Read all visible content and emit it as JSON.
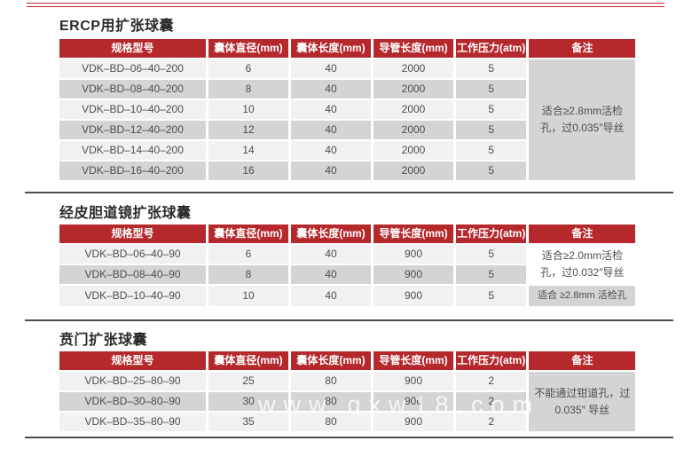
{
  "page": {
    "watermark": "www.qxw18.com"
  },
  "colors": {
    "header_red": "#b5292d",
    "top_rule_red": "#cc2129",
    "row_light": "#f1f1f1",
    "row_dark": "#d4d4d4",
    "divider_gray": "#4d4d4d"
  },
  "columns": [
    "规格型号",
    "囊体直径(mm)",
    "囊体长度(mm)",
    "导管长度(mm)",
    "工作压力(atm)",
    "备注"
  ],
  "sections": [
    {
      "title": "ERCP用扩张球囊",
      "rows": [
        [
          "VDK–BD–06–40–200",
          "6",
          "40",
          "2000",
          "5"
        ],
        [
          "VDK–BD–08–40–200",
          "8",
          "40",
          "2000",
          "5"
        ],
        [
          "VDK–BD–10–40–200",
          "10",
          "40",
          "2000",
          "5"
        ],
        [
          "VDK–BD–12–40–200",
          "12",
          "40",
          "2000",
          "5"
        ],
        [
          "VDK–BD–14–40–200",
          "14",
          "40",
          "2000",
          "5"
        ],
        [
          "VDK–BD–16–40–200",
          "16",
          "40",
          "2000",
          "5"
        ]
      ],
      "remarks": [
        {
          "start": 0,
          "span": 6,
          "shaded": true,
          "small": false,
          "text": "适合≥2.8mm活检孔，过0.035″导丝"
        }
      ]
    },
    {
      "title": "经皮胆道镜扩张球囊",
      "rows": [
        [
          "VDK–BD–06–40–90",
          "6",
          "40",
          "900",
          "5"
        ],
        [
          "VDK–BD–08–40–90",
          "8",
          "40",
          "900",
          "5"
        ],
        [
          "VDK–BD–10–40–90",
          "10",
          "40",
          "900",
          "5"
        ]
      ],
      "remarks": [
        {
          "start": 0,
          "span": 2,
          "shaded": false,
          "small": false,
          "text": "适合≥2.0mm活检孔，过0.032″导丝"
        },
        {
          "start": 2,
          "span": 1,
          "shaded": true,
          "small": true,
          "text": "适合 ≥2.8mm 活检孔"
        }
      ]
    },
    {
      "title": "贲门扩张球囊",
      "rows": [
        [
          "VDK–BD–25–80–90",
          "25",
          "80",
          "900",
          "2"
        ],
        [
          "VDK–BD–30–80–90",
          "30",
          "80",
          "900",
          "2"
        ],
        [
          "VDK–BD–35–80–90",
          "35",
          "80",
          "900",
          "2"
        ]
      ],
      "remarks": [
        {
          "start": 0,
          "span": 3,
          "shaded": true,
          "small": false,
          "text": "不能通过钳道孔，过 0.035″ 导丝"
        }
      ]
    }
  ]
}
